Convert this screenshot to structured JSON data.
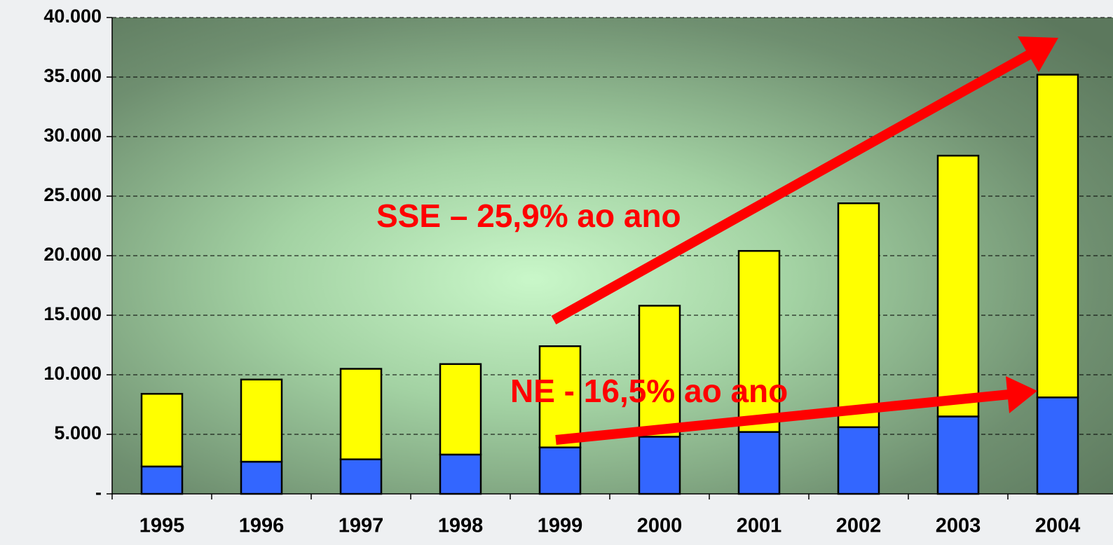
{
  "chart_data": {
    "type": "stacked_bar",
    "categories": [
      "1995",
      "1996",
      "1997",
      "1998",
      "1999",
      "2000",
      "2001",
      "2002",
      "2003",
      "2004"
    ],
    "series": [
      {
        "color": "#3366ff",
        "values": [
          2300,
          2700,
          2900,
          3300,
          3900,
          4800,
          5200,
          5600,
          6500,
          8100
        ]
      },
      {
        "color": "#ffff00",
        "values": [
          6100,
          6900,
          7600,
          7600,
          8500,
          11000,
          15200,
          18800,
          21900,
          27100
        ]
      }
    ],
    "ylim": [
      0,
      40000
    ],
    "yticks": [
      {
        "value": 0,
        "label": "-"
      },
      {
        "value": 5000,
        "label": "5.000"
      },
      {
        "value": 10000,
        "label": "10.000"
      },
      {
        "value": 15000,
        "label": "15.000"
      },
      {
        "value": 20000,
        "label": "20.000"
      },
      {
        "value": 25000,
        "label": "25.000"
      },
      {
        "value": 30000,
        "label": "30.000"
      },
      {
        "value": 35000,
        "label": "35.000"
      },
      {
        "value": 40000,
        "label": "40.000"
      }
    ],
    "grid": true,
    "annotations": [
      "SSE – 25,9% ao ano",
      "NE - 16,5% ao ano"
    ]
  }
}
